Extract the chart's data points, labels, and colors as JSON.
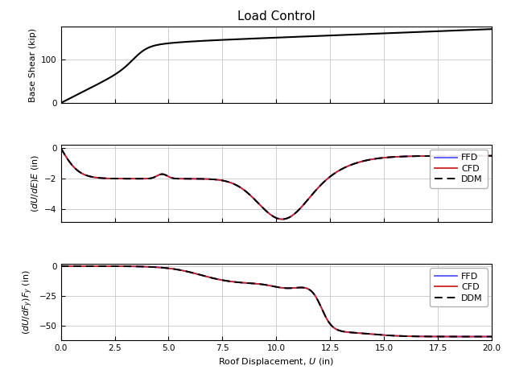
{
  "title": "Load Control",
  "xlabel": "Roof Displacement, $U$ (in)",
  "ylabel1": "Base Shear (kip)",
  "ylabel2": "$(dU/dE)E$ (in)",
  "ylabel3": "$(dU/dF_y)F_y$ (in)",
  "xlim": [
    0.0,
    20.0
  ],
  "ylim1": [
    0,
    175
  ],
  "ylim2": [
    -4.8,
    0.2
  ],
  "ylim3": [
    -62,
    2
  ],
  "xticks": [
    0.0,
    2.5,
    5.0,
    7.5,
    10.0,
    12.5,
    15.0,
    17.5,
    20.0
  ],
  "yticks1": [
    0,
    100
  ],
  "yticks2": [
    0,
    -2,
    -4
  ],
  "yticks3": [
    0,
    -25,
    -50
  ],
  "color_ddm": "#000000",
  "color_ffd": "#5555ff",
  "color_cfd": "#cc2222",
  "lw_main": 1.5,
  "lw_sens": 1.3,
  "legend_entries": [
    "DDM",
    "FFD",
    "CFD"
  ],
  "title_fontsize": 11,
  "label_fontsize": 8,
  "tick_fontsize": 7.5,
  "legend_fontsize": 8
}
